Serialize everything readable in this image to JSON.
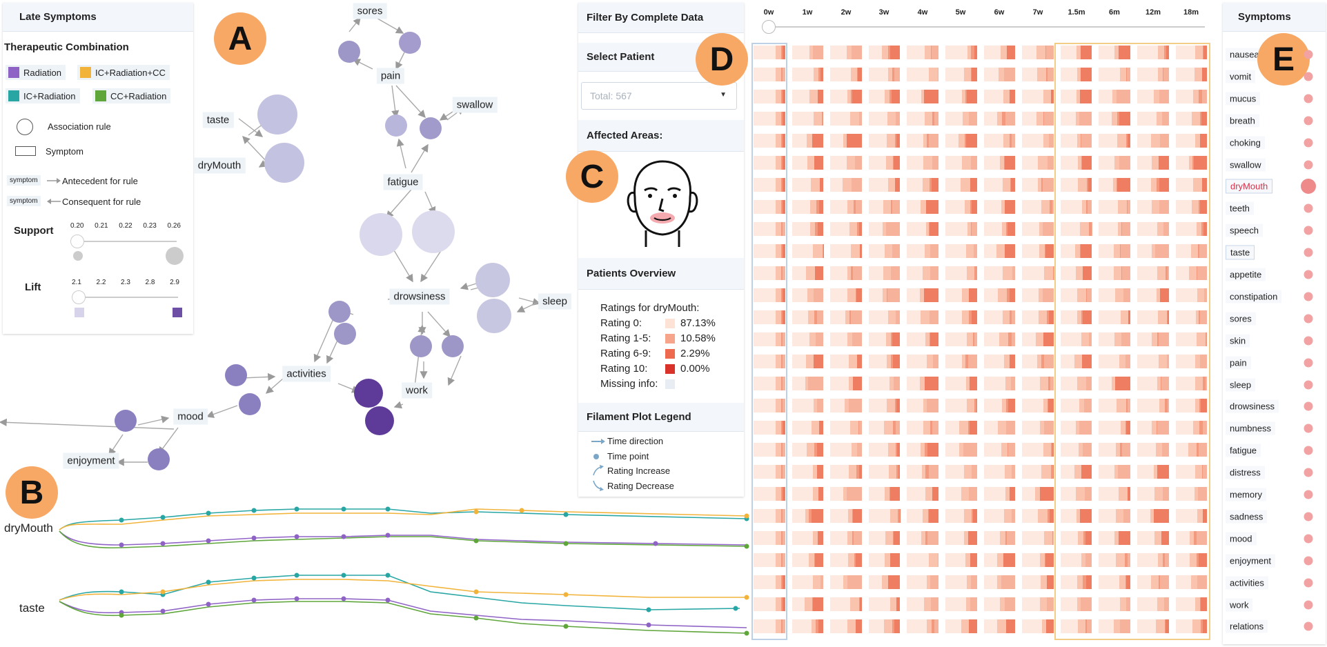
{
  "badges": {
    "a": "A",
    "b": "B",
    "c": "C",
    "d": "D",
    "e": "E"
  },
  "left_panel": {
    "title": "Late Symptoms",
    "combo_title": "Therapeutic Combination",
    "combos": [
      {
        "label": "Radiation",
        "color": "#8f63c6"
      },
      {
        "label": "IC+Radiation+CC",
        "color": "#f2b33a"
      },
      {
        "label": "IC+Radiation",
        "color": "#27a6a4"
      },
      {
        "label": "CC+Radiation",
        "color": "#5ea53a"
      }
    ],
    "assoc_rule": "Association rule",
    "symptom": "Symptom",
    "antecedent_tag": "symptom",
    "antecedent": "Antecedent for rule",
    "consequent_tag": "symptom",
    "consequent": "Consequent for rule",
    "support_label": "Support",
    "support_ticks": [
      "0.20",
      "0.21",
      "0.22",
      "0.23",
      "0.26"
    ],
    "lift_label": "Lift",
    "lift_ticks": [
      "2.1",
      "2.2",
      "2.3",
      "2.8",
      "2.9"
    ]
  },
  "graph": {
    "labels": {
      "sores": "sores",
      "pain": "pain",
      "swallow": "swallow",
      "taste": "taste",
      "drymouth": "dryMouth",
      "fatigue": "fatigue",
      "drowsiness": "drowsiness",
      "sleep": "sleep",
      "activities": "activities",
      "work": "work",
      "mood": "mood",
      "enjoyment": "enjoyment"
    }
  },
  "filament": {
    "row1": "dryMouth",
    "row2": "taste"
  },
  "middle": {
    "filter_title": "Filter By Complete Data",
    "select_title": "Select Patient",
    "select_placeholder": "Total: 567",
    "areas_title": "Affected Areas:",
    "overview_title": "Patients Overview",
    "ratings_for": "Ratings for dryMouth:",
    "ratings": [
      {
        "label": "Rating 0:",
        "value": "87.13%",
        "color": "#fde3d6"
      },
      {
        "label": "Rating 1-5:",
        "value": "10.58%",
        "color": "#f6a48a"
      },
      {
        "label": "Rating 6-9:",
        "value": "2.29%",
        "color": "#ee6a4f"
      },
      {
        "label": "Rating 10:",
        "value": "0.00%",
        "color": "#d8322a"
      }
    ],
    "missing_label": "Missing info:",
    "legend_title": "Filament Plot Legend",
    "legend_items": [
      "Time direction",
      "Time point",
      "Rating Increase",
      "Rating Decrease"
    ]
  },
  "timeline": {
    "ticks": [
      "0w",
      "1w",
      "2w",
      "3w",
      "4w",
      "5w",
      "6w",
      "7w",
      "1.5m",
      "6m",
      "12m",
      "18m"
    ]
  },
  "symptoms_panel": {
    "title": "Symptoms",
    "items": [
      "nausea",
      "vomit",
      "mucus",
      "breath",
      "choking",
      "swallow",
      "dryMouth",
      "teeth",
      "speech",
      "taste",
      "appetite",
      "constipation",
      "sores",
      "skin",
      "pain",
      "sleep",
      "drowsiness",
      "numbness",
      "fatigue",
      "distress",
      "memory",
      "sadness",
      "mood",
      "enjoyment",
      "activities",
      "work",
      "relations"
    ],
    "selected": "dryMouth",
    "highlighted": "taste"
  }
}
